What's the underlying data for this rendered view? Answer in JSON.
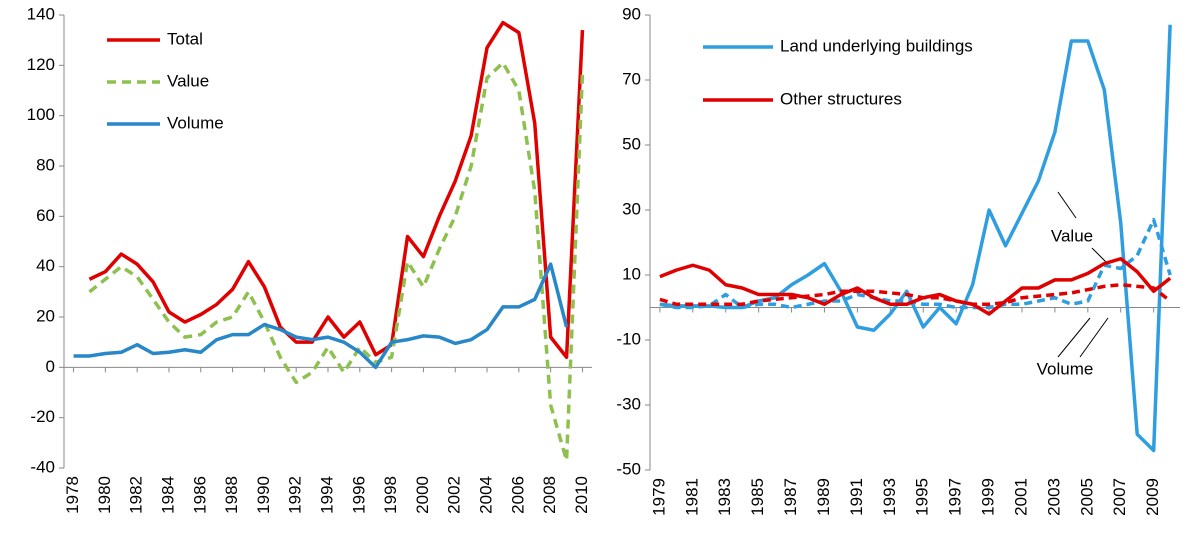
{
  "chart_data": [
    {
      "type": "line",
      "x": [
        1978,
        1979,
        1980,
        1981,
        1982,
        1983,
        1984,
        1985,
        1986,
        1987,
        1988,
        1989,
        1990,
        1991,
        1992,
        1993,
        1994,
        1995,
        1996,
        1997,
        1998,
        1999,
        2000,
        2001,
        2002,
        2003,
        2004,
        2005,
        2006,
        2007,
        2008,
        2009,
        2010
      ],
      "series": [
        {
          "name": "Total",
          "color": "#e00000",
          "dash": false,
          "values": [
            null,
            35,
            38,
            45,
            41,
            34,
            22,
            18,
            21,
            25,
            31,
            42,
            32,
            16,
            10,
            10,
            20,
            12,
            18,
            5,
            9,
            52,
            44,
            60,
            74,
            92,
            127,
            137,
            133,
            97,
            12,
            4,
            134
          ]
        },
        {
          "name": "Value",
          "color": "#8dc04e",
          "dash": true,
          "values": [
            null,
            30,
            35,
            40,
            36,
            27,
            18,
            12,
            13,
            18,
            20,
            30,
            18,
            4,
            -6,
            -2,
            8,
            -2,
            8,
            2,
            4,
            42,
            32,
            47,
            60,
            80,
            115,
            121,
            110,
            70,
            -15,
            -37,
            117
          ]
        },
        {
          "name": "Volume",
          "color": "#2787c8",
          "dash": false,
          "values": [
            4.5,
            4.5,
            5.5,
            6,
            9,
            5.5,
            6,
            7,
            6,
            11,
            13,
            13,
            17,
            15,
            12,
            11,
            12,
            10,
            6,
            0,
            10,
            11,
            12.5,
            12,
            9.5,
            11,
            15,
            24,
            24,
            27,
            41,
            16,
            null
          ]
        }
      ],
      "xlim": [
        1977.4,
        2010.6
      ],
      "xticks": [
        1978,
        1980,
        1982,
        1984,
        1986,
        1988,
        1990,
        1992,
        1994,
        1996,
        1998,
        2000,
        2002,
        2004,
        2006,
        2008,
        2010
      ],
      "ylim": [
        -40,
        140
      ],
      "yticks": [
        -40,
        -20,
        0,
        20,
        40,
        60,
        80,
        100,
        120,
        140
      ]
    },
    {
      "type": "line",
      "x": [
        1979,
        1980,
        1981,
        1982,
        1983,
        1984,
        1985,
        1986,
        1987,
        1988,
        1989,
        1990,
        1991,
        1992,
        1993,
        1994,
        1995,
        1996,
        1997,
        1998,
        1999,
        2000,
        2001,
        2002,
        2003,
        2004,
        2005,
        2006,
        2007,
        2008,
        2009,
        2010
      ],
      "series": [
        {
          "name": "Land underlying buildings",
          "color": "#2f9ee0",
          "values": [
            1,
            0.5,
            0.5,
            0.5,
            0,
            0,
            2,
            3,
            7,
            10,
            13.5,
            5,
            -6,
            -7,
            -2,
            5,
            -6,
            0,
            -5,
            7,
            30,
            19,
            29,
            39,
            54,
            82,
            82,
            67,
            26,
            -39,
            -44,
            87
          ],
          "volume": [
            1,
            0,
            0,
            0.5,
            4,
            0,
            1,
            1,
            0,
            1,
            2,
            2,
            4,
            3,
            2,
            2,
            1,
            1,
            0,
            0,
            0,
            1,
            1,
            2,
            3,
            1,
            2,
            13,
            12,
            16,
            27,
            10
          ]
        },
        {
          "name": "Other structures",
          "color": "#e00000",
          "values": [
            9.5,
            11.5,
            13,
            11.5,
            7,
            6,
            4,
            4,
            4,
            3,
            1,
            4,
            6,
            3,
            1,
            1,
            3,
            4,
            2,
            1,
            -2,
            2,
            6,
            6,
            8.5,
            8.5,
            10.5,
            13.5,
            15,
            11,
            5,
            9
          ],
          "volume": [
            2.5,
            1,
            1,
            1,
            1,
            1,
            2,
            2.5,
            3,
            3.5,
            4,
            5,
            5,
            5,
            4.5,
            4,
            3,
            3,
            2,
            1,
            1,
            1.5,
            3,
            3.5,
            4,
            4.5,
            5.5,
            6.5,
            7,
            6.5,
            6,
            2
          ]
        }
      ],
      "annotations": [
        "Value",
        "Volume"
      ],
      "xlim": [
        1978.4,
        2010.6
      ],
      "xticks": [
        1979,
        1981,
        1983,
        1985,
        1987,
        1989,
        1991,
        1993,
        1995,
        1997,
        1999,
        2001,
        2003,
        2005,
        2007,
        2009
      ],
      "ylim": [
        -50,
        90
      ],
      "yticks": [
        -50,
        -30,
        -10,
        10,
        30,
        50,
        70,
        90
      ]
    }
  ]
}
